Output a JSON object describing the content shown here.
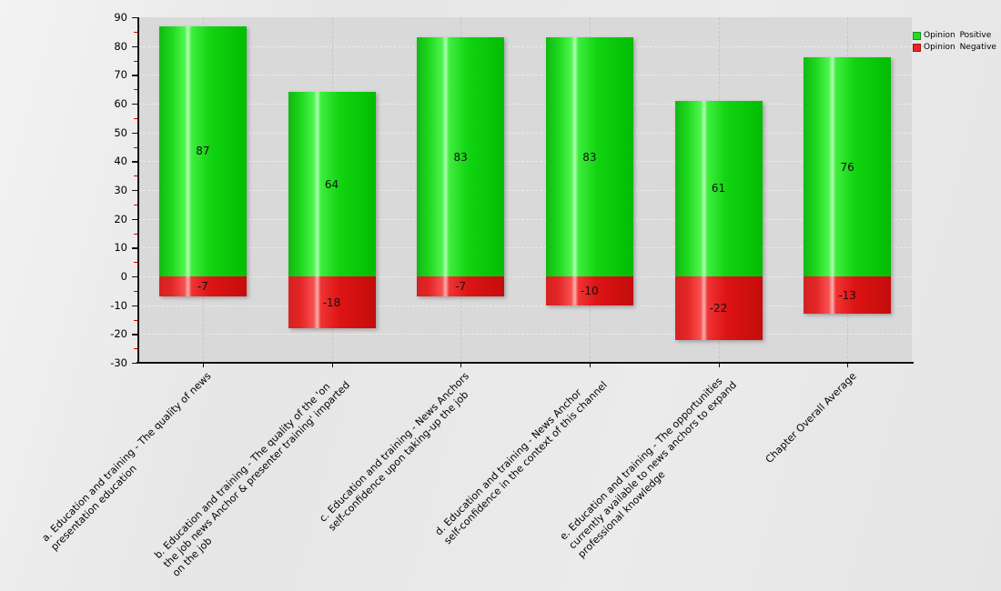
{
  "chart_data": {
    "type": "bar",
    "title": "",
    "xlabel": "",
    "ylabel": "",
    "categories": [
      "a. Education and training - The quality of news\npresentation education",
      "b. Education and training - The quality of the 'on\nthe job news Anchor & presenter training' imparted\non the job",
      "c. Education and training - News Anchors\nself-confidence upon taking-up the job",
      "d. Education and training - News Anchor\nself-confidence in the context of this channel",
      "e. Education and training - The opportunities\ncurrently available to news anchors to expand\nprofessional knowledge",
      "Chapter Overall Average"
    ],
    "series": [
      {
        "name": "Opinion Positive",
        "color": "#22dd22",
        "values": [
          87,
          64,
          83,
          83,
          61,
          76
        ]
      },
      {
        "name": "Opinion Negative",
        "color": "#ee2222",
        "values": [
          -7,
          -18,
          -7,
          -10,
          -22,
          -13
        ]
      }
    ],
    "ylim": [
      -30,
      90
    ],
    "yticks": [
      90,
      80,
      70,
      60,
      50,
      40,
      30,
      20,
      10,
      0,
      -10,
      -20,
      -30
    ],
    "ytick_step": 10,
    "minor_tick_step": 5,
    "minor_tick_color": "#cc0000",
    "grid": true,
    "legend_position": "top-right"
  }
}
